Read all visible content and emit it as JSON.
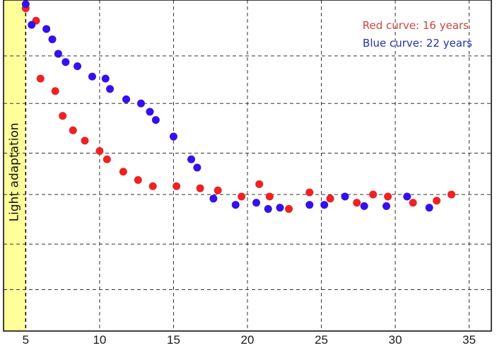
{
  "chart_data": {
    "type": "scatter",
    "title": "",
    "xlabel": "",
    "ylabel": "",
    "xlim": [
      3.5,
      36.5
    ],
    "ylim": [
      0,
      8
    ],
    "x_ticks": [
      5,
      10,
      15,
      20,
      25,
      30,
      35
    ],
    "x_tick_labels": [
      "5",
      "10",
      "15",
      "20",
      "25",
      "30",
      "35"
    ],
    "y_gridlines": [
      1.0,
      2.1,
      3.3,
      4.3,
      5.5,
      6.65
    ],
    "grid": true,
    "grid_style": "dashed",
    "band": {
      "label": "Light adaptation",
      "x_end": 5,
      "color": "#ffff99"
    },
    "legend": {
      "placement": "top-right",
      "entries": [
        {
          "text": "Red curve: 16 years",
          "color": "#cc4444"
        },
        {
          "text": "Blue curve: 22 years",
          "color": "#2233aa"
        }
      ]
    },
    "series": [
      {
        "name": "Red curve: 16 years",
        "color": "#ee2222",
        "points": [
          [
            5.0,
            7.8
          ],
          [
            5.7,
            7.5
          ],
          [
            6.0,
            6.1
          ],
          [
            7.0,
            5.8
          ],
          [
            7.5,
            5.2
          ],
          [
            8.2,
            4.85
          ],
          [
            9.0,
            4.6
          ],
          [
            10.0,
            4.35
          ],
          [
            10.5,
            4.15
          ],
          [
            11.6,
            3.85
          ],
          [
            12.6,
            3.65
          ],
          [
            13.6,
            3.5
          ],
          [
            15.2,
            3.5
          ],
          [
            16.8,
            3.45
          ],
          [
            18.0,
            3.4
          ],
          [
            19.6,
            3.25
          ],
          [
            20.8,
            3.55
          ],
          [
            21.5,
            3.25
          ],
          [
            22.8,
            2.95
          ],
          [
            24.2,
            3.35
          ],
          [
            25.6,
            3.2
          ],
          [
            27.4,
            3.1
          ],
          [
            28.5,
            3.3
          ],
          [
            29.5,
            3.25
          ],
          [
            31.2,
            3.1
          ],
          [
            32.8,
            3.15
          ],
          [
            33.8,
            3.3
          ]
        ]
      },
      {
        "name": "Blue curve: 22 years",
        "color": "#3311ee",
        "points": [
          [
            5.0,
            7.9
          ],
          [
            5.4,
            7.4
          ],
          [
            6.4,
            7.3
          ],
          [
            6.8,
            7.05
          ],
          [
            7.2,
            6.7
          ],
          [
            7.7,
            6.5
          ],
          [
            8.5,
            6.4
          ],
          [
            9.5,
            6.15
          ],
          [
            10.4,
            6.1
          ],
          [
            10.7,
            5.85
          ],
          [
            11.8,
            5.6
          ],
          [
            12.8,
            5.5
          ],
          [
            13.4,
            5.3
          ],
          [
            13.8,
            5.1
          ],
          [
            15.0,
            4.7
          ],
          [
            16.2,
            4.15
          ],
          [
            16.6,
            3.95
          ],
          [
            17.7,
            3.2
          ],
          [
            19.2,
            3.05
          ],
          [
            20.6,
            3.1
          ],
          [
            21.4,
            2.95
          ],
          [
            22.2,
            2.98
          ],
          [
            24.2,
            3.05
          ],
          [
            25.2,
            3.05
          ],
          [
            26.6,
            3.25
          ],
          [
            27.9,
            3.02
          ],
          [
            29.4,
            3.02
          ],
          [
            30.8,
            3.25
          ],
          [
            32.3,
            2.98
          ]
        ]
      }
    ]
  }
}
